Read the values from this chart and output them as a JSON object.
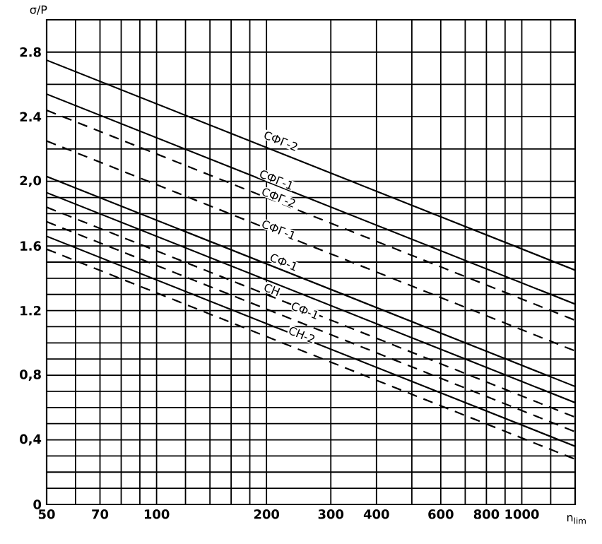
{
  "chart_data": {
    "type": "line",
    "xlabel": "n$_{lim}$",
    "ylabel": "σ/P",
    "log": "x",
    "grid": true,
    "marker": "none",
    "x": [
      50,
      1400
    ],
    "xlim": [
      50,
      1400
    ],
    "ylim": [
      0,
      3.0
    ],
    "xticks": [
      50,
      {
        "value": 60,
        "label": null
      },
      70,
      {
        "value": 80,
        "label": null
      },
      {
        "value": 90,
        "label": null
      },
      100,
      {
        "value": 120,
        "label": null
      },
      {
        "value": 140,
        "label": null
      },
      {
        "value": 160,
        "label": null
      },
      {
        "value": 180,
        "label": null
      },
      200,
      300,
      400,
      {
        "value": 500,
        "label": null
      },
      600,
      {
        "value": 700,
        "label": null
      },
      800,
      {
        "value": 900,
        "label": null
      },
      1000,
      {
        "value": 1200,
        "label": null
      }
    ],
    "yticks": [
      0,
      {
        "value": 0.1,
        "label": null
      },
      {
        "value": 0.2,
        "label": null
      },
      {
        "value": 0.3,
        "label": null
      },
      {
        "value": 0.4,
        "label": "0,4"
      },
      {
        "value": 0.5,
        "label": null
      },
      {
        "value": 0.6,
        "label": null
      },
      {
        "value": 0.7,
        "label": null
      },
      {
        "value": 0.8,
        "label": "0,8"
      },
      {
        "value": 0.9,
        "label": null
      },
      {
        "value": 1.0,
        "label": null
      },
      {
        "value": 1.1,
        "label": null
      },
      {
        "value": 1.2,
        "label": "1.2"
      },
      {
        "value": 1.3,
        "label": null
      },
      {
        "value": 1.4,
        "label": null
      },
      {
        "value": 1.5,
        "label": null
      },
      {
        "value": 1.6,
        "label": "1.6"
      },
      {
        "value": 1.7,
        "label": null
      },
      {
        "value": 1.8,
        "label": null
      },
      {
        "value": 1.9,
        "label": null
      },
      {
        "value": 2.0,
        "label": "2,0"
      },
      {
        "value": 2.2,
        "label": null
      },
      {
        "value": 2.4,
        "label": "2.4"
      },
      {
        "value": 2.6,
        "label": null
      },
      {
        "value": 2.8,
        "label": "2.8"
      }
    ],
    "series": [
      {
        "color": "#000000",
        "line_style": "solid",
        "values": [
          2.75,
          1.45
        ]
      },
      {
        "color": "#000000",
        "line_style": "solid",
        "values": [
          2.54,
          1.24
        ]
      },
      {
        "color": "#000000",
        "line_style": "dashed",
        "values": [
          2.44,
          1.14
        ]
      },
      {
        "color": "#000000",
        "line_style": "dashed",
        "values": [
          2.25,
          0.95
        ]
      },
      {
        "color": "#000000",
        "line_style": "solid",
        "values": [
          2.03,
          0.73
        ]
      },
      {
        "color": "#000000",
        "line_style": "solid",
        "values": [
          1.93,
          0.63
        ]
      },
      {
        "color": "#000000",
        "line_style": "dashed",
        "values": [
          1.84,
          0.54
        ]
      },
      {
        "color": "#000000",
        "line_style": "dashed",
        "values": [
          1.75,
          0.45
        ]
      },
      {
        "color": "#000000",
        "line_style": "solid",
        "values": [
          1.66,
          0.36
        ]
      },
      {
        "color": "#000000",
        "line_style": "dashed",
        "values": [
          1.58,
          0.28
        ]
      }
    ],
    "annotations": [
      {
        "text": "СФГ-2",
        "x": 219,
        "y": 2.25
      },
      {
        "text": "СФГ-1",
        "x": 213,
        "y": 2.01
      },
      {
        "text": "СФГ-2",
        "x": 216,
        "y": 1.9
      },
      {
        "text": "СФГ-1",
        "x": 216,
        "y": 1.7
      },
      {
        "text": "СФ-1",
        "x": 223,
        "y": 1.5
      },
      {
        "text": "СН",
        "x": 207,
        "y": 1.33
      },
      {
        "text": "СФ-1",
        "x": 255,
        "y": 1.2
      },
      {
        "text": "СН-2",
        "x": 250,
        "y": 1.05
      }
    ]
  }
}
